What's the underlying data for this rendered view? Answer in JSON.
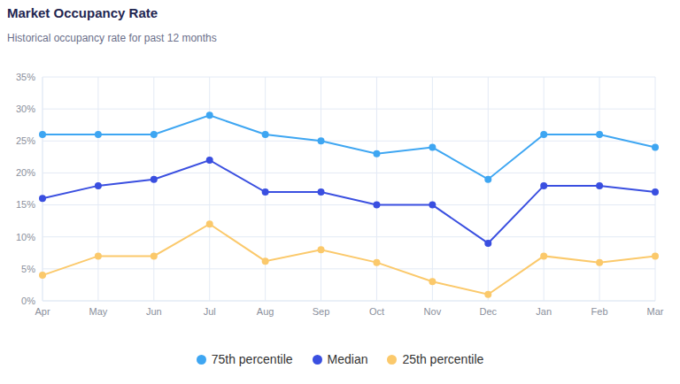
{
  "chart_data": {
    "type": "line",
    "title": "Market Occupancy Rate",
    "subtitle": "Historical occupancy rate for past 12 months",
    "categories": [
      "Apr",
      "May",
      "Jun",
      "Jul",
      "Aug",
      "Sep",
      "Oct",
      "Nov",
      "Dec",
      "Jan",
      "Feb",
      "Mar"
    ],
    "series": [
      {
        "name": "75th percentile",
        "color": "#3ea6f2",
        "marker": "circle",
        "values": [
          26,
          26,
          26,
          29,
          26,
          25,
          23,
          24,
          19,
          26,
          26,
          24
        ]
      },
      {
        "name": "Median",
        "color": "#3a4fe0",
        "marker": "circle",
        "values": [
          16,
          18,
          19,
          22,
          17,
          17,
          15,
          15,
          9,
          18,
          18,
          17
        ]
      },
      {
        "name": "25th percentile",
        "color": "#fbc96b",
        "marker": "circle",
        "values": [
          4,
          7,
          7,
          12,
          6.2,
          8,
          6,
          3,
          1,
          7,
          6,
          7
        ]
      }
    ],
    "ylim": [
      0,
      35
    ],
    "yticks": [
      {
        "value": 0,
        "label": "0%"
      },
      {
        "value": 5,
        "label": "5%"
      },
      {
        "value": 10,
        "label": "10%"
      },
      {
        "value": 15,
        "label": "15%"
      },
      {
        "value": 20,
        "label": "20%"
      },
      {
        "value": 25,
        "label": "25%"
      },
      {
        "value": 30,
        "label": "30%"
      },
      {
        "value": 35,
        "label": "35%"
      }
    ],
    "grid": true,
    "legend": "bottom"
  }
}
